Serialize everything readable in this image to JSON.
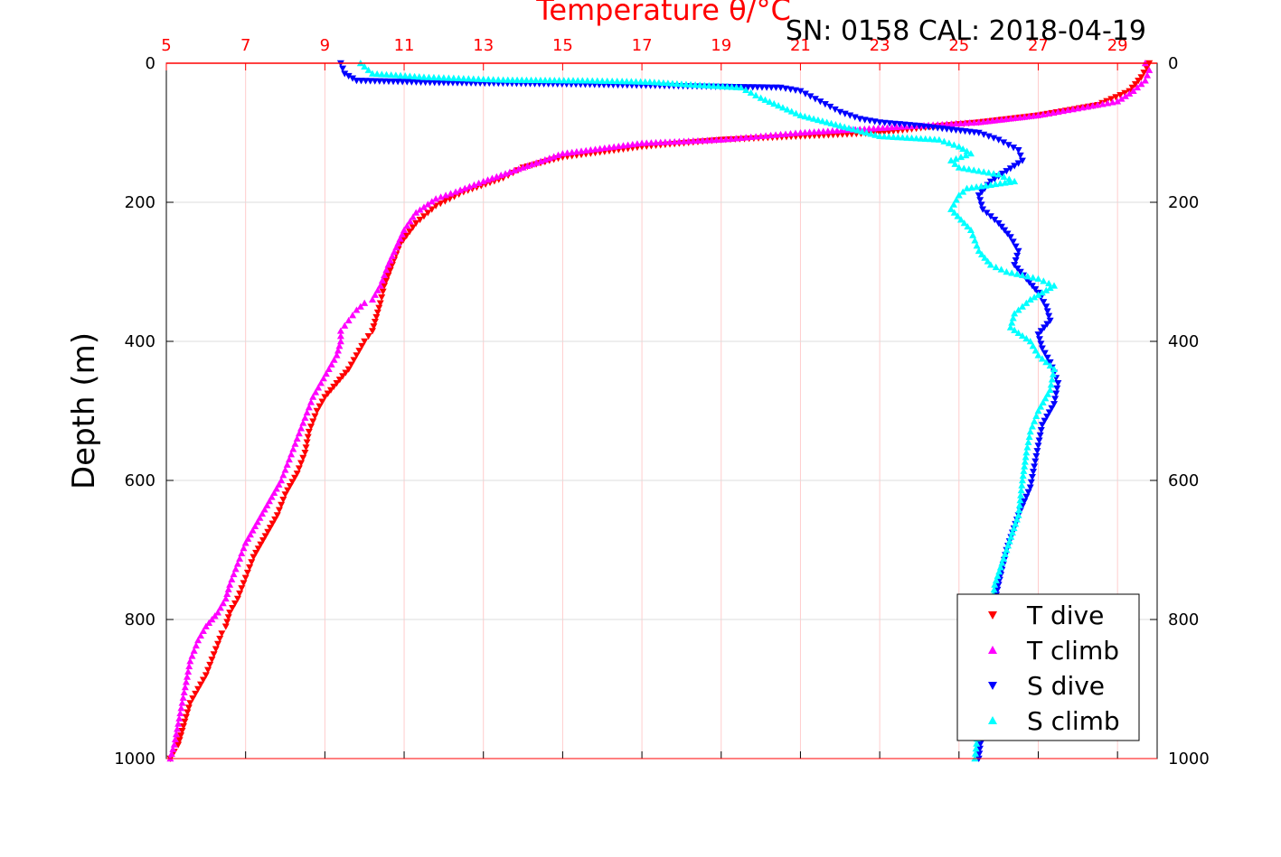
{
  "chart_data": {
    "type": "scatter",
    "title": "Temperature θ/°C",
    "subtitle": "SN: 0158  CAL: 2018-04-19",
    "ylabel": "Depth (m)",
    "xlim": [
      5,
      30
    ],
    "ylim": [
      0,
      1000
    ],
    "y_reversed": true,
    "grid": true,
    "x_ticks": [
      5,
      7,
      9,
      11,
      13,
      15,
      17,
      19,
      21,
      23,
      25,
      27,
      29
    ],
    "y_ticks": [
      0,
      200,
      400,
      600,
      800,
      1000
    ],
    "legend_position": "bottom-right",
    "colors": {
      "t_axis": "#ff0000",
      "t_grid": "#ffcccc",
      "grid": "#dddddd"
    },
    "series": [
      {
        "name": "T dive",
        "marker": "triangle-down",
        "color": "#ff0000",
        "x": [
          29.8,
          29.6,
          29.3,
          28.5,
          27.0,
          25.5,
          24.5,
          23.0,
          21.0,
          19.0,
          17.0,
          15.0,
          14.0,
          13.5,
          12.5,
          11.8,
          11.3,
          10.9,
          10.7,
          10.5,
          10.4,
          10.3,
          10.2,
          10.0,
          9.8,
          9.6,
          9.3,
          9.0,
          8.8,
          8.6,
          8.5,
          8.3,
          8.0,
          7.8,
          7.5,
          7.2,
          7.0,
          6.8,
          6.6,
          6.5,
          6.4,
          6.2,
          6.0,
          5.8,
          5.6,
          5.5,
          5.4,
          5.3,
          5.2,
          5.1
        ],
        "y": [
          0,
          20,
          40,
          60,
          75,
          85,
          90,
          100,
          105,
          110,
          120,
          135,
          150,
          165,
          185,
          205,
          230,
          260,
          290,
          320,
          345,
          365,
          385,
          400,
          420,
          440,
          460,
          480,
          500,
          530,
          560,
          590,
          620,
          650,
          680,
          710,
          740,
          770,
          790,
          810,
          820,
          850,
          880,
          900,
          920,
          940,
          960,
          980,
          990,
          1000
        ]
      },
      {
        "name": "T climb",
        "marker": "triangle-up",
        "color": "#ff00ff",
        "x": [
          29.7,
          29.8,
          29.7,
          29.4,
          29.0,
          28.0,
          27.0,
          25.5,
          24.0,
          22.5,
          21.0,
          20.0,
          19.0,
          17.0,
          15.0,
          14.0,
          13.0,
          12.3,
          11.8,
          11.3,
          11.0,
          10.8,
          10.6,
          10.4,
          10.2,
          10.0,
          9.8,
          9.6,
          9.4,
          9.4,
          9.3,
          9.1,
          8.9,
          8.7,
          8.5,
          8.3,
          8.1,
          7.9,
          7.6,
          7.3,
          7.0,
          6.8,
          6.6,
          6.5,
          6.3,
          6.0,
          5.8,
          5.6,
          5.5,
          5.4,
          5.3,
          5.2,
          5.1
        ],
        "y": [
          0,
          10,
          25,
          40,
          55,
          65,
          75,
          85,
          90,
          95,
          100,
          105,
          110,
          115,
          130,
          150,
          170,
          185,
          195,
          215,
          240,
          265,
          290,
          320,
          340,
          345,
          355,
          370,
          385,
          400,
          420,
          440,
          460,
          480,
          510,
          540,
          570,
          600,
          630,
          660,
          690,
          720,
          750,
          770,
          790,
          810,
          830,
          860,
          890,
          920,
          950,
          980,
          1000
        ]
      },
      {
        "name": "S dive",
        "marker": "triangle-down",
        "color": "#0000ff",
        "x": [
          9.4,
          9.5,
          9.8,
          12.0,
          15.1,
          17.1,
          20.5,
          21.0,
          21.5,
          22.0,
          22.5,
          23.0,
          24.0,
          25.5,
          26.0,
          26.5,
          26.6,
          26.2,
          25.8,
          25.5,
          25.6,
          26.0,
          26.3,
          26.5,
          26.4,
          26.7,
          27.0,
          27.2,
          27.3,
          27.0,
          27.1,
          27.3,
          27.5,
          27.4,
          27.1,
          27.0,
          26.9,
          26.8,
          26.5,
          26.2,
          26.0,
          25.8,
          25.7,
          25.6,
          25.6,
          25.5
        ],
        "y": [
          0,
          15,
          25,
          28,
          30,
          32,
          35,
          40,
          55,
          70,
          80,
          85,
          90,
          100,
          110,
          125,
          140,
          155,
          170,
          190,
          210,
          230,
          250,
          270,
          290,
          310,
          330,
          350,
          370,
          390,
          410,
          430,
          460,
          490,
          520,
          550,
          580,
          610,
          650,
          700,
          750,
          800,
          850,
          900,
          950,
          1000
        ]
      },
      {
        "name": "S climb",
        "marker": "triangle-up",
        "color": "#00ffff",
        "x": [
          9.9,
          10.2,
          11.5,
          12.5,
          13.5,
          15.5,
          16.5,
          17.2,
          18.0,
          19.5,
          20.0,
          21.0,
          22.0,
          23.0,
          24.5,
          25.0,
          25.3,
          24.8,
          25.0,
          26.0,
          26.4,
          25.2,
          25.0,
          24.8,
          25.3,
          25.5,
          25.8,
          26.2,
          26.6,
          27.0,
          27.4,
          26.8,
          26.4,
          26.3,
          26.8,
          27.0,
          27.4,
          27.3,
          27.0,
          26.8,
          26.7,
          26.6,
          26.5,
          26.2,
          25.9,
          25.8,
          25.7,
          25.6,
          25.5,
          25.4
        ],
        "y": [
          0,
          15,
          20,
          22,
          24,
          25,
          26,
          27,
          30,
          35,
          50,
          75,
          90,
          105,
          110,
          120,
          130,
          140,
          150,
          160,
          170,
          180,
          190,
          210,
          240,
          270,
          290,
          300,
          305,
          310,
          320,
          340,
          360,
          380,
          400,
          420,
          440,
          470,
          500,
          530,
          560,
          600,
          650,
          700,
          750,
          800,
          850,
          900,
          950,
          1000
        ]
      }
    ]
  }
}
